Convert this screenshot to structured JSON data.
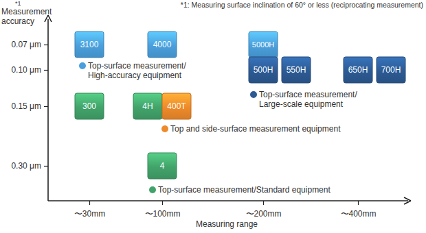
{
  "chart_data": {
    "type": "matrix",
    "footnote": "*1: Measuring surface inclination of 60° or less (reciprocating measurement)",
    "y_label": "Measurement\naccuracy",
    "y_label_note": "*1",
    "x_label": "Measuring range",
    "x_categories": [
      "〜30mm",
      "〜100mm",
      "〜200mm",
      "〜400mm"
    ],
    "y_categories": [
      "0.07 μm",
      "0.10 μm",
      "0.15 μm",
      "0.30 μm"
    ],
    "series": [
      {
        "name": "Top-surface measurement/\nHigh-accuracy equipment",
        "color": "#4a9fdc",
        "items": [
          {
            "label": "3100",
            "x": "〜30mm",
            "y": "0.07 μm"
          },
          {
            "label": "4000",
            "x": "〜100mm",
            "y": "0.07 μm"
          },
          {
            "label": "5000H",
            "x": "〜200mm",
            "y": "0.07 μm"
          }
        ]
      },
      {
        "name": "Top-surface measurement/\nLarge-scale equipment",
        "color": "#2c5a93",
        "items": [
          {
            "label": "500H",
            "x": "〜200mm",
            "y": "0.10 μm"
          },
          {
            "label": "550H",
            "x": "〜200mm",
            "y": "0.10 μm"
          },
          {
            "label": "650H",
            "x": "〜400mm",
            "y": "0.10 μm"
          },
          {
            "label": "700H",
            "x": "〜400mm",
            "y": "0.10 μm"
          }
        ]
      },
      {
        "name": "Top-surface measurement/Standard equipment",
        "color": "#42a36a",
        "items": [
          {
            "label": "300",
            "x": "〜30mm",
            "y": "0.15 μm"
          },
          {
            "label": "4H",
            "x": "〜100mm",
            "y": "0.15 μm"
          },
          {
            "label": "4",
            "x": "〜100mm",
            "y": "0.30 μm"
          }
        ]
      },
      {
        "name": "Top and side-surface measurement equipment",
        "color": "#ee8a2a",
        "items": [
          {
            "label": "400T",
            "x": "〜100mm",
            "y": "0.15 μm"
          }
        ]
      }
    ]
  }
}
